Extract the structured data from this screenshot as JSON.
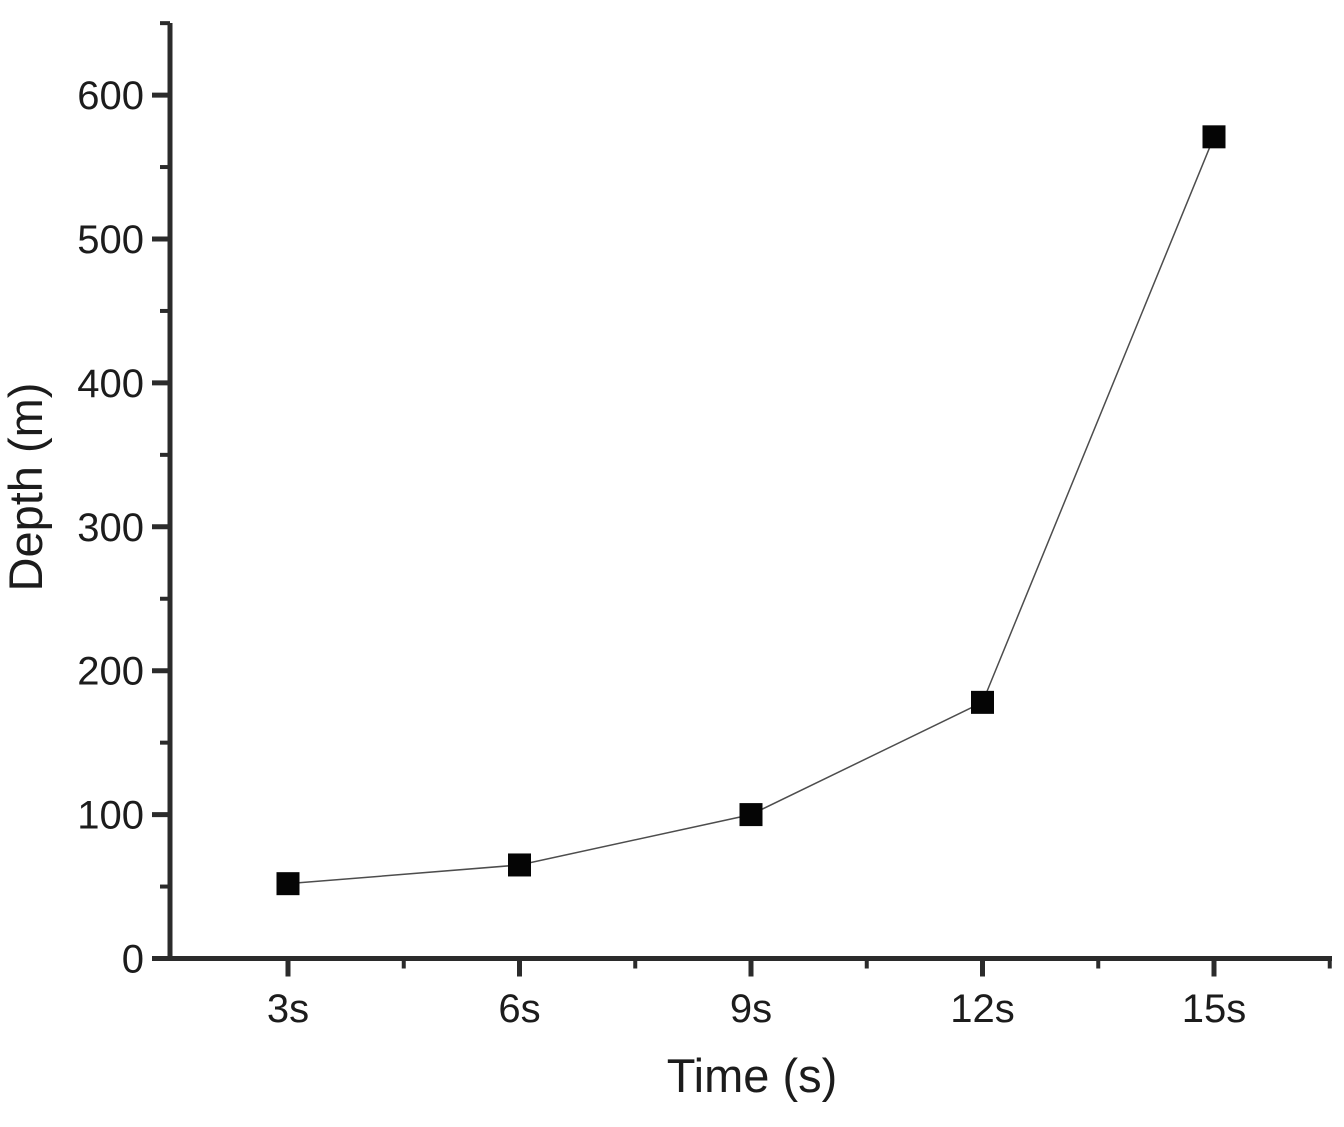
{
  "chart_data": {
    "type": "line",
    "title": "",
    "xlabel": "Time (s)",
    "ylabel": "Depth (m)",
    "categories": [
      "3s",
      "6s",
      "9s",
      "12s",
      "15s"
    ],
    "x_values": [
      3,
      6,
      9,
      12,
      15
    ],
    "series": [
      {
        "name": "Depth",
        "values": [
          52,
          65,
          100,
          178,
          571
        ]
      }
    ],
    "values": [
      52,
      65,
      100,
      178,
      571
    ],
    "ylim": [
      0,
      650
    ],
    "y_major_ticks": [
      0,
      100,
      200,
      300,
      400,
      500,
      600
    ],
    "y_minor_ticks": [
      50,
      150,
      250,
      350,
      450,
      550,
      650
    ],
    "x_minor_tick_positions": [
      4.5,
      7.5,
      10.5,
      13.5,
      16.5
    ],
    "grid": false,
    "legend": "none",
    "marker": "filled-square",
    "colors": {
      "axis": "#2b2b2b",
      "tick_text": "#1c1c1c",
      "line": "#4d4d4d",
      "marker": "#050505",
      "background": "#ffffff"
    }
  }
}
